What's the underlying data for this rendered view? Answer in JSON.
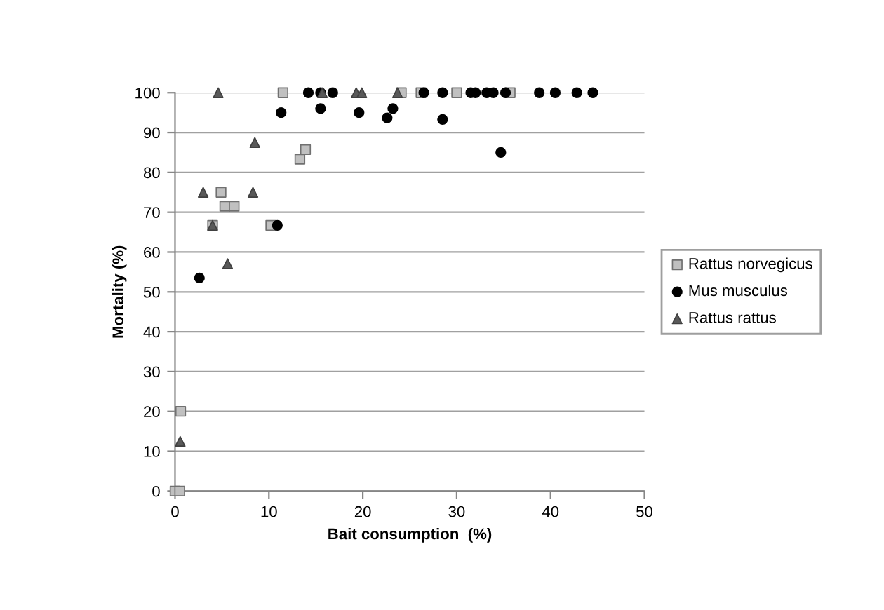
{
  "chart_data": {
    "type": "scatter",
    "xlabel": "Bait consumption  (%)",
    "ylabel": "Mortality (%)",
    "xlim": [
      0,
      50
    ],
    "xticks": [
      0,
      10,
      20,
      30,
      40,
      50
    ],
    "ylim": [
      0,
      100
    ],
    "yticks": [
      0,
      10,
      20,
      30,
      40,
      50,
      60,
      70,
      80,
      90,
      100
    ],
    "grid": "y",
    "legend": "right",
    "series": [
      {
        "name": "Rattus norvegicus",
        "color": "#c0c0c0",
        "marker": "square",
        "x": [
          0,
          0.5,
          0.6,
          4.9,
          5.3,
          6.3,
          4.0,
          10.2,
          11.5,
          13.3,
          13.9,
          24.1,
          26.2,
          30.0,
          35.7
        ],
        "values": [
          0,
          0,
          20,
          75,
          71.5,
          71.5,
          66.7,
          66.7,
          100,
          83.3,
          85.7,
          100,
          100,
          100,
          100
        ]
      },
      {
        "name": "Mus musculus",
        "color": "#000000",
        "marker": "circle",
        "x": [
          2.6,
          10.9,
          11.3,
          14.2,
          15.5,
          15.5,
          16.8,
          19.6,
          22.6,
          23.2,
          26.5,
          28.5,
          28.5,
          31.5,
          32.0,
          33.2,
          33.9,
          34.7,
          35.2,
          38.8,
          40.5,
          42.8,
          44.5
        ],
        "values": [
          53.5,
          66.7,
          95,
          100,
          100,
          96,
          100,
          95,
          93.7,
          96,
          100,
          100,
          93.3,
          100,
          100,
          100,
          100,
          85,
          100,
          100,
          100,
          100,
          100
        ]
      },
      {
        "name": "Rattus rattus",
        "color": "#595959",
        "marker": "triangle",
        "x": [
          0.55,
          5.6,
          3.0,
          4.0,
          4.6,
          8.5,
          8.3,
          15.7,
          19.3,
          19.9,
          23.7
        ],
        "values": [
          12.5,
          57.1,
          75,
          66.7,
          100,
          87.5,
          75,
          100,
          100,
          100,
          100
        ]
      }
    ]
  }
}
